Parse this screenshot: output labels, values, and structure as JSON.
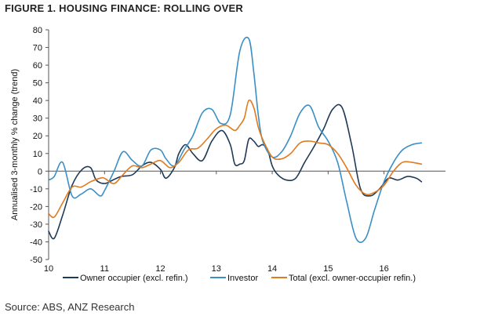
{
  "title": "FIGURE 1. HOUSING FINANCE: ROLLING OVER",
  "source": "Source: ABS, ANZ Research",
  "chart_data": {
    "type": "line",
    "ylabel": "Annualised 3-monthly % change (trend)",
    "xlabel": "",
    "xlim": [
      10,
      17.1
    ],
    "ylim": [
      -50,
      80
    ],
    "y_ticks": [
      80,
      70,
      60,
      50,
      40,
      30,
      20,
      10,
      0,
      -10,
      -20,
      -30,
      -40,
      -50
    ],
    "x_ticks": [
      "10",
      "11",
      "12",
      "13",
      "14",
      "15",
      "16"
    ],
    "grid": false,
    "legend_position": "bottom",
    "series": [
      {
        "name": "Owner occupier (excl. refin.)",
        "color": "#1f3a57",
        "x": [
          10.0,
          10.1,
          10.25,
          10.42,
          10.6,
          10.75,
          10.85,
          11.0,
          11.15,
          11.3,
          11.5,
          11.67,
          11.83,
          12.0,
          12.1,
          12.25,
          12.33,
          12.45,
          12.58,
          12.75,
          12.92,
          13.1,
          13.25,
          13.33,
          13.42,
          13.5,
          13.58,
          13.67,
          13.75,
          13.83,
          13.92,
          14.0,
          14.1,
          14.25,
          14.42,
          14.58,
          14.75,
          14.92,
          15.08,
          15.25,
          15.42,
          15.58,
          15.75,
          15.92,
          16.08,
          16.25,
          16.42,
          16.58,
          16.67
        ],
        "y": [
          -34,
          -38,
          -25,
          -8,
          1,
          2,
          -5,
          -7,
          -5,
          -3,
          -2,
          3,
          5,
          1,
          -4,
          2,
          10,
          15,
          10,
          6,
          17,
          23,
          15,
          4,
          4,
          6,
          18,
          17,
          14,
          15,
          12,
          3,
          -2,
          -5,
          -4,
          5,
          14,
          24,
          35,
          36,
          15,
          -10,
          -14,
          -10,
          -4,
          -5,
          -3,
          -4,
          -6
        ]
      },
      {
        "name": "Investor",
        "color": "#3a8fc4",
        "x": [
          10.0,
          10.1,
          10.25,
          10.42,
          10.58,
          10.75,
          10.92,
          11.0,
          11.17,
          11.33,
          11.5,
          11.67,
          11.83,
          12.0,
          12.1,
          12.25,
          12.42,
          12.58,
          12.75,
          12.92,
          13.08,
          13.25,
          13.42,
          13.58,
          13.67,
          13.75,
          13.83,
          14.0,
          14.17,
          14.33,
          14.5,
          14.67,
          14.83,
          15.0,
          15.17,
          15.33,
          15.5,
          15.67,
          15.83,
          16.0,
          16.17,
          16.33,
          16.5,
          16.67
        ],
        "y": [
          -5,
          -3,
          5,
          -14,
          -13,
          -10,
          -14,
          -11,
          0,
          11,
          6,
          3,
          12,
          12,
          7,
          3,
          12,
          20,
          33,
          35,
          27,
          32,
          68,
          75,
          56,
          32,
          17,
          8,
          11,
          20,
          33,
          37,
          25,
          17,
          5,
          -17,
          -38,
          -38,
          -22,
          -6,
          5,
          12,
          15,
          16
        ]
      },
      {
        "name": "Total (excl. owner-occupier refin.)",
        "color": "#e07a1f",
        "x": [
          10.0,
          10.1,
          10.25,
          10.42,
          10.58,
          10.75,
          10.92,
          11.0,
          11.17,
          11.33,
          11.5,
          11.67,
          11.83,
          12.0,
          12.17,
          12.33,
          12.5,
          12.67,
          12.83,
          13.0,
          13.17,
          13.33,
          13.42,
          13.5,
          13.58,
          13.67,
          13.75,
          13.83,
          14.0,
          14.17,
          14.33,
          14.5,
          14.67,
          14.83,
          15.0,
          15.17,
          15.33,
          15.5,
          15.67,
          15.83,
          16.0,
          16.17,
          16.33,
          16.5,
          16.67
        ],
        "y": [
          -24,
          -26,
          -18,
          -9,
          -9,
          -6,
          -4,
          -4,
          -7,
          -2,
          3,
          2,
          4,
          6,
          2,
          5,
          12,
          13,
          18,
          24,
          26,
          23,
          26,
          30,
          40,
          36,
          25,
          18,
          8,
          7,
          10,
          16,
          17,
          16,
          15,
          10,
          2,
          -8,
          -13,
          -12,
          -8,
          0,
          5,
          5,
          4
        ]
      }
    ]
  }
}
